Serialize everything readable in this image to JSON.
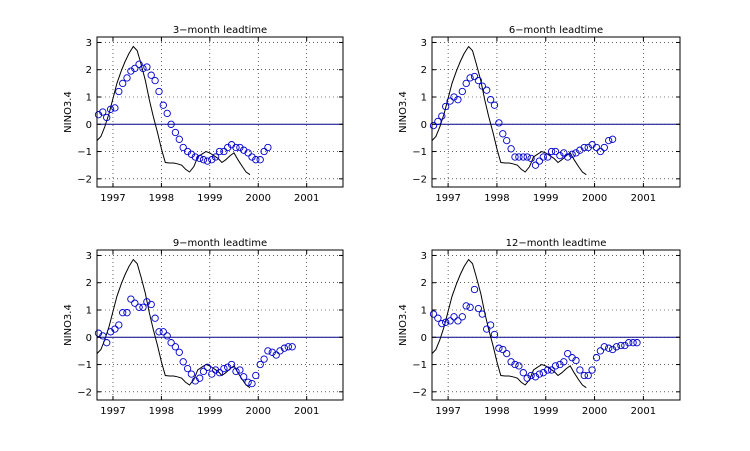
{
  "chart_data": [
    {
      "type": "scatter",
      "title": "3−month leadtime",
      "ylabel": "NINO3.4",
      "xlim": [
        1996.67,
        2001.75
      ],
      "ylim": [
        -2.3,
        3.2
      ],
      "xticks": [
        1997,
        1998,
        1999,
        2000,
        2001
      ],
      "yticks": [
        -2,
        -1,
        0,
        1,
        2,
        3
      ],
      "xticklabels": [
        "1997",
        "1998",
        "1999",
        "2000",
        "2001"
      ],
      "yticklabels": [
        "−2",
        "−1",
        "0",
        "1",
        "2",
        "3"
      ],
      "grid": true,
      "series": [
        {
          "kind": "line",
          "color": "#000000",
          "x": [
            1996.67,
            1996.75,
            1996.83,
            1996.92,
            1997.0,
            1997.08,
            1997.17,
            1997.25,
            1997.33,
            1997.42,
            1997.5,
            1997.58,
            1997.67,
            1997.75,
            1997.83,
            1997.92,
            1998.0,
            1998.08,
            1998.17,
            1998.25,
            1998.33,
            1998.42,
            1998.5,
            1998.58,
            1998.67,
            1998.75,
            1998.83,
            1998.92,
            1999.0,
            1999.08,
            1999.17,
            1999.25,
            1999.33,
            1999.42,
            1999.5,
            1999.58,
            1999.67,
            1999.75,
            1999.83
          ],
          "y": [
            -0.6,
            -0.45,
            -0.1,
            0.4,
            0.95,
            1.5,
            1.95,
            2.3,
            2.6,
            2.85,
            2.7,
            2.2,
            1.6,
            0.9,
            0.3,
            -0.3,
            -0.9,
            -1.4,
            -1.42,
            -1.42,
            -1.45,
            -1.5,
            -1.65,
            -1.75,
            -1.55,
            -1.2,
            -1.1,
            -1.0,
            -1.05,
            -1.15,
            -1.25,
            -1.4,
            -1.3,
            -1.15,
            -1.05,
            -1.3,
            -1.55,
            -1.75,
            -1.85
          ]
        },
        {
          "kind": "circles",
          "color": "#0000cc",
          "x": [
            1996.7,
            1996.79,
            1996.87,
            1996.95,
            1997.04,
            1997.12,
            1997.2,
            1997.29,
            1997.37,
            1997.45,
            1997.54,
            1997.62,
            1997.7,
            1997.79,
            1997.87,
            1997.95,
            1998.04,
            1998.12,
            1998.2,
            1998.29,
            1998.37,
            1998.45,
            1998.54,
            1998.62,
            1998.7,
            1998.79,
            1998.87,
            1998.95,
            1999.04,
            1999.12,
            1999.2,
            1999.29,
            1999.37,
            1999.45,
            1999.54,
            1999.62,
            1999.7,
            1999.79,
            1999.87,
            1999.95,
            2000.04
          ],
          "y": [
            0.35,
            0.45,
            0.25,
            0.55,
            0.6,
            1.2,
            1.5,
            1.7,
            1.95,
            2.05,
            2.2,
            2.05,
            2.1,
            1.8,
            1.6,
            1.2,
            0.7,
            0.4,
            0.0,
            -0.3,
            -0.55,
            -0.85,
            -1.0,
            -1.1,
            -1.2,
            -1.25,
            -1.3,
            -1.35,
            -1.3,
            -1.2,
            -1.0,
            -1.0,
            -0.85,
            -0.75,
            -0.85,
            -0.85,
            -0.95,
            -1.05,
            -1.2,
            -1.3,
            -1.3
          ]
        },
        {
          "kind": "circles",
          "color": "#0000cc",
          "x": [
            2000.12,
            2000.2
          ],
          "y": [
            -1.0,
            -0.85
          ]
        }
      ]
    },
    {
      "type": "scatter",
      "title": "6−month leadtime",
      "ylabel": "NINO3.4",
      "xlim": [
        1996.67,
        2001.75
      ],
      "ylim": [
        -2.3,
        3.2
      ],
      "xticks": [
        1997,
        1998,
        1999,
        2000,
        2001
      ],
      "yticks": [
        -2,
        -1,
        0,
        1,
        2,
        3
      ],
      "xticklabels": [
        "1997",
        "1998",
        "1999",
        "2000",
        "2001"
      ],
      "yticklabels": [
        "−2",
        "−1",
        "0",
        "1",
        "2",
        "3"
      ],
      "grid": true,
      "series": [
        {
          "kind": "line",
          "color": "#000000",
          "x": [
            1996.67,
            1996.75,
            1996.83,
            1996.92,
            1997.0,
            1997.08,
            1997.17,
            1997.25,
            1997.33,
            1997.42,
            1997.5,
            1997.58,
            1997.67,
            1997.75,
            1997.83,
            1997.92,
            1998.0,
            1998.08,
            1998.17,
            1998.25,
            1998.33,
            1998.42,
            1998.5,
            1998.58,
            1998.67,
            1998.75,
            1998.83,
            1998.92,
            1999.0,
            1999.08,
            1999.17,
            1999.25,
            1999.33,
            1999.42,
            1999.5,
            1999.58,
            1999.67,
            1999.75,
            1999.83
          ],
          "y": [
            -0.6,
            -0.45,
            -0.1,
            0.4,
            0.95,
            1.5,
            1.95,
            2.3,
            2.6,
            2.85,
            2.7,
            2.2,
            1.6,
            0.9,
            0.3,
            -0.3,
            -0.9,
            -1.4,
            -1.42,
            -1.42,
            -1.45,
            -1.5,
            -1.65,
            -1.75,
            -1.55,
            -1.2,
            -1.1,
            -1.0,
            -1.05,
            -1.15,
            -1.25,
            -1.4,
            -1.3,
            -1.15,
            -1.05,
            -1.3,
            -1.55,
            -1.75,
            -1.85
          ]
        },
        {
          "kind": "circles",
          "color": "#0000cc",
          "x": [
            1996.7,
            1996.79,
            1996.87,
            1996.95,
            1997.04,
            1997.12,
            1997.2,
            1997.29,
            1997.37,
            1997.45,
            1997.54,
            1997.62,
            1997.7,
            1997.79,
            1997.87,
            1997.95,
            1998.04,
            1998.12,
            1998.2,
            1998.29,
            1998.37,
            1998.45,
            1998.54,
            1998.62,
            1998.7,
            1998.79,
            1998.87,
            1998.95,
            1999.04,
            1999.12,
            1999.2,
            1999.29,
            1999.37,
            1999.45,
            1999.54,
            1999.62,
            1999.7,
            1999.79,
            1999.87,
            1999.95,
            2000.04,
            2000.12,
            2000.2,
            2000.29,
            2000.37
          ],
          "y": [
            -0.05,
            0.1,
            0.3,
            0.65,
            0.85,
            1.0,
            0.9,
            1.2,
            1.5,
            1.7,
            1.75,
            1.6,
            1.4,
            1.25,
            0.9,
            0.7,
            0.05,
            -0.35,
            -0.6,
            -0.9,
            -1.2,
            -1.2,
            -1.2,
            -1.2,
            -1.25,
            -1.5,
            -1.35,
            -1.2,
            -1.2,
            -1.0,
            -1.0,
            -1.15,
            -1.05,
            -1.2,
            -1.1,
            -1.05,
            -0.95,
            -0.85,
            -0.85,
            -0.75,
            -0.85,
            -1.0,
            -0.85,
            -0.6,
            -0.55
          ]
        }
      ]
    },
    {
      "type": "scatter",
      "title": "9−month leadtime",
      "ylabel": "NINO3.4",
      "xlim": [
        1996.67,
        2001.75
      ],
      "ylim": [
        -2.3,
        3.2
      ],
      "xticks": [
        1997,
        1998,
        1999,
        2000,
        2001
      ],
      "yticks": [
        -2,
        -1,
        0,
        1,
        2,
        3
      ],
      "xticklabels": [
        "1997",
        "1998",
        "1999",
        "2000",
        "2001"
      ],
      "yticklabels": [
        "−2",
        "−1",
        "0",
        "1",
        "2",
        "3"
      ],
      "grid": true,
      "series": [
        {
          "kind": "line",
          "color": "#000000",
          "x": [
            1996.67,
            1996.75,
            1996.83,
            1996.92,
            1997.0,
            1997.08,
            1997.17,
            1997.25,
            1997.33,
            1997.42,
            1997.5,
            1997.58,
            1997.67,
            1997.75,
            1997.83,
            1997.92,
            1998.0,
            1998.08,
            1998.17,
            1998.25,
            1998.33,
            1998.42,
            1998.5,
            1998.58,
            1998.67,
            1998.75,
            1998.83,
            1998.92,
            1999.0,
            1999.08,
            1999.17,
            1999.25,
            1999.33,
            1999.42,
            1999.5,
            1999.58,
            1999.67,
            1999.75,
            1999.83
          ],
          "y": [
            -0.6,
            -0.45,
            -0.1,
            0.4,
            0.95,
            1.5,
            1.95,
            2.3,
            2.6,
            2.85,
            2.7,
            2.2,
            1.6,
            0.9,
            0.3,
            -0.3,
            -0.9,
            -1.4,
            -1.42,
            -1.42,
            -1.45,
            -1.5,
            -1.65,
            -1.75,
            -1.55,
            -1.2,
            -1.1,
            -1.0,
            -1.05,
            -1.15,
            -1.25,
            -1.4,
            -1.3,
            -1.15,
            -1.05,
            -1.3,
            -1.55,
            -1.75,
            -1.85
          ]
        },
        {
          "kind": "circles",
          "color": "#0000cc",
          "x": [
            1996.7,
            1996.79,
            1996.87,
            1996.95,
            1997.04,
            1997.12,
            1997.2,
            1997.29,
            1997.37,
            1997.45,
            1997.54,
            1997.62,
            1997.7,
            1997.79,
            1997.87,
            1997.95,
            1998.04,
            1998.12,
            1998.2,
            1998.29,
            1998.37,
            1998.45,
            1998.54,
            1998.62,
            1998.7,
            1998.79,
            1998.87,
            1998.95,
            1999.04,
            1999.12,
            1999.2,
            1999.29,
            1999.37,
            1999.45,
            1999.54,
            1999.62,
            1999.7,
            1999.79,
            1999.87,
            1999.95,
            2000.04,
            2000.12,
            2000.2,
            2000.29,
            2000.37,
            2000.45,
            2000.54,
            2000.62,
            2000.7
          ],
          "y": [
            0.15,
            0.05,
            -0.2,
            0.2,
            0.3,
            0.45,
            0.9,
            0.9,
            1.4,
            1.25,
            1.1,
            1.1,
            1.3,
            1.2,
            0.7,
            0.2,
            0.2,
            0.05,
            -0.2,
            -0.35,
            -0.55,
            -0.9,
            -1.15,
            -1.35,
            -1.6,
            -1.5,
            -1.25,
            -1.1,
            -1.35,
            -1.2,
            -1.3,
            -1.15,
            -1.1,
            -1.0,
            -1.25,
            -1.2,
            -1.45,
            -1.65,
            -1.7,
            -1.4,
            -1.0,
            -0.8,
            -0.5,
            -0.55,
            -0.65,
            -0.5,
            -0.4,
            -0.35,
            -0.35
          ]
        }
      ]
    },
    {
      "type": "scatter",
      "title": "12−month leadtime",
      "ylabel": "NINO3.4",
      "xlim": [
        1996.67,
        2001.75
      ],
      "ylim": [
        -2.3,
        3.2
      ],
      "xticks": [
        1997,
        1998,
        1999,
        2000,
        2001
      ],
      "yticks": [
        -2,
        -1,
        0,
        1,
        2,
        3
      ],
      "xticklabels": [
        "1997",
        "1998",
        "1999",
        "2000",
        "2001"
      ],
      "yticklabels": [
        "−2",
        "−1",
        "0",
        "1",
        "2",
        "3"
      ],
      "grid": true,
      "series": [
        {
          "kind": "line",
          "color": "#000000",
          "x": [
            1996.67,
            1996.75,
            1996.83,
            1996.92,
            1997.0,
            1997.08,
            1997.17,
            1997.25,
            1997.33,
            1997.42,
            1997.5,
            1997.58,
            1997.67,
            1997.75,
            1997.83,
            1997.92,
            1998.0,
            1998.08,
            1998.17,
            1998.25,
            1998.33,
            1998.42,
            1998.5,
            1998.58,
            1998.67,
            1998.75,
            1998.83,
            1998.92,
            1999.0,
            1999.08,
            1999.17,
            1999.25,
            1999.33,
            1999.42,
            1999.5,
            1999.58,
            1999.67,
            1999.75,
            1999.83
          ],
          "y": [
            -0.6,
            -0.45,
            -0.1,
            0.4,
            0.95,
            1.5,
            1.95,
            2.3,
            2.6,
            2.85,
            2.7,
            2.2,
            1.6,
            0.9,
            0.3,
            -0.3,
            -0.9,
            -1.4,
            -1.42,
            -1.42,
            -1.45,
            -1.5,
            -1.65,
            -1.75,
            -1.55,
            -1.2,
            -1.1,
            -1.0,
            -1.05,
            -1.15,
            -1.25,
            -1.4,
            -1.3,
            -1.15,
            -1.05,
            -1.3,
            -1.55,
            -1.75,
            -1.85
          ]
        },
        {
          "kind": "circles",
          "color": "#0000cc",
          "x": [
            1996.7,
            1996.79,
            1996.87,
            1996.95,
            1997.04,
            1997.12,
            1997.2,
            1997.29,
            1997.37,
            1997.45,
            1997.54,
            1997.62,
            1997.7,
            1997.79,
            1997.87,
            1997.95,
            1998.04,
            1998.12,
            1998.2,
            1998.29,
            1998.37,
            1998.45,
            1998.54,
            1998.62,
            1998.7,
            1998.79,
            1998.87,
            1998.95,
            1999.04,
            1999.12,
            1999.2,
            1999.29,
            1999.37,
            1999.45,
            1999.54,
            1999.62,
            1999.7,
            1999.79,
            1999.87,
            1999.95,
            2000.04,
            2000.12,
            2000.2,
            2000.29,
            2000.37,
            2000.45,
            2000.54,
            2000.62,
            2000.7,
            2000.79,
            2000.87
          ],
          "y": [
            0.85,
            0.7,
            0.5,
            0.55,
            0.6,
            0.75,
            0.6,
            0.75,
            1.15,
            1.1,
            1.75,
            1.05,
            0.85,
            0.3,
            0.45,
            0.1,
            -0.4,
            -0.45,
            -0.6,
            -0.9,
            -1.0,
            -1.05,
            -1.3,
            -1.5,
            -1.4,
            -1.45,
            -1.35,
            -1.3,
            -1.2,
            -1.2,
            -1.05,
            -1.0,
            -0.9,
            -0.6,
            -0.75,
            -0.85,
            -1.2,
            -1.4,
            -1.4,
            -1.2,
            -0.75,
            -0.5,
            -0.35,
            -0.4,
            -0.45,
            -0.35,
            -0.3,
            -0.3,
            -0.2,
            -0.2,
            -0.2
          ]
        }
      ]
    }
  ]
}
